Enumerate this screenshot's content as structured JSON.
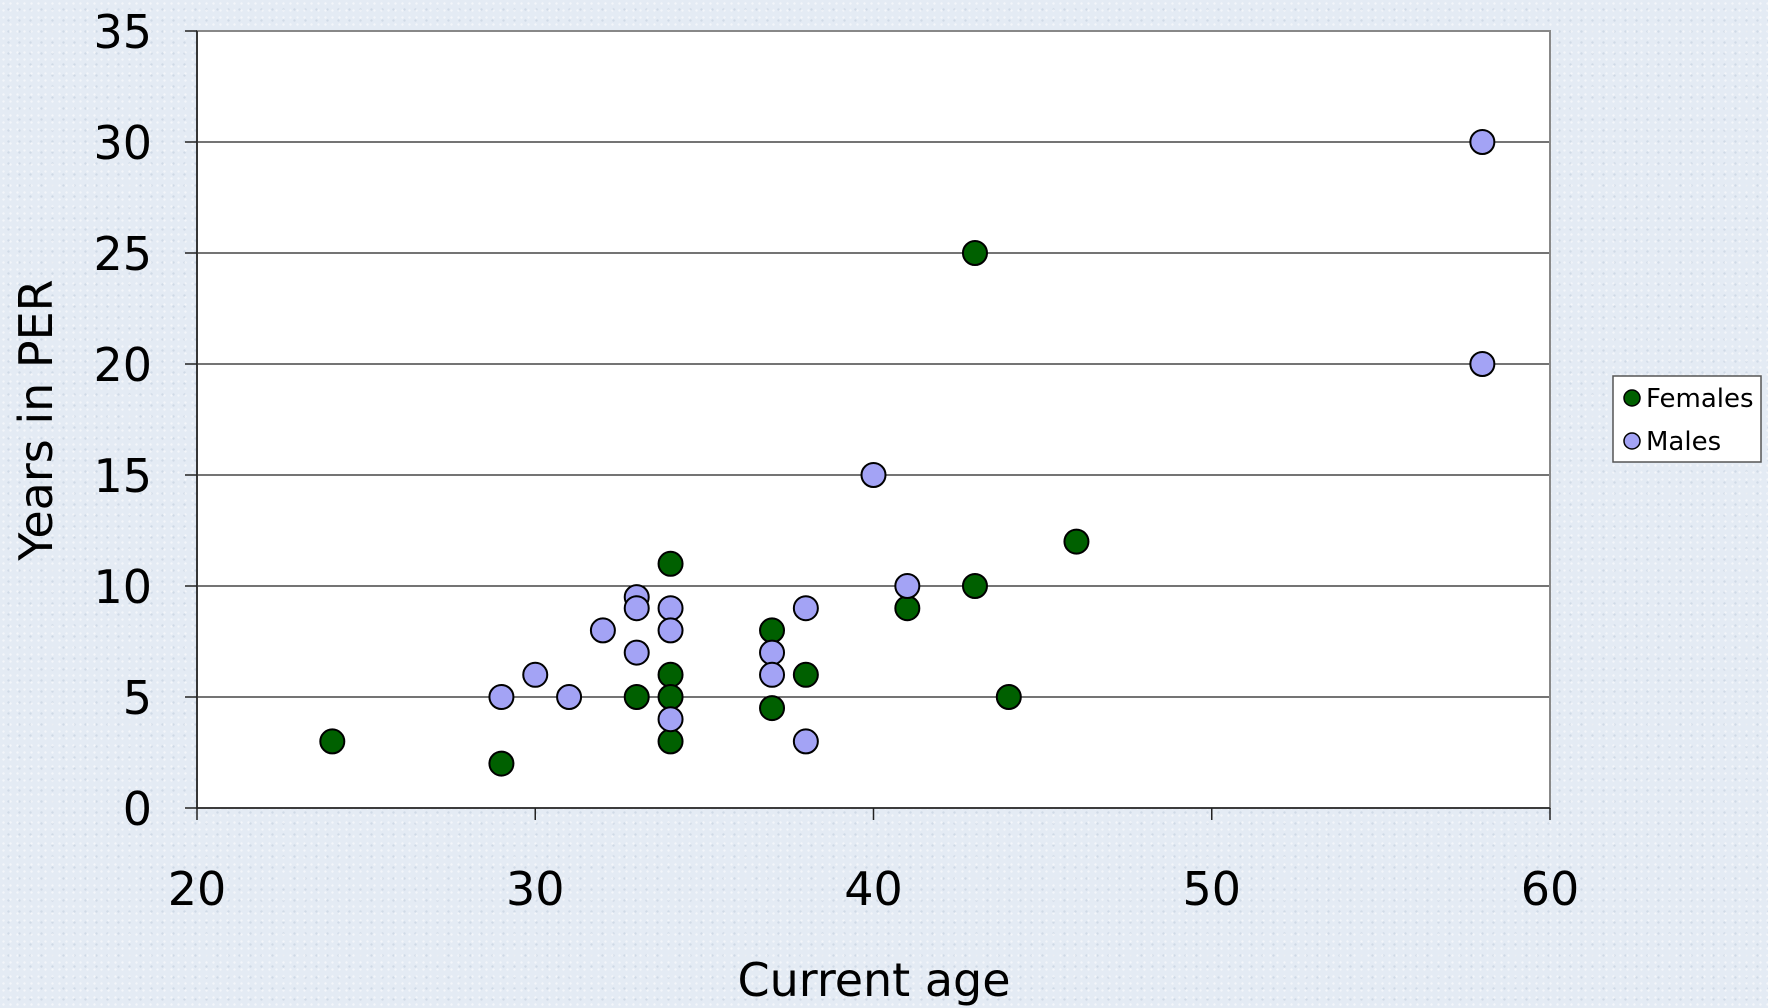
{
  "chart_data": {
    "type": "scatter",
    "xlabel": "Current age",
    "ylabel": "Years in PER",
    "xlim": [
      20,
      60
    ],
    "ylim": [
      0,
      35
    ],
    "xticks": [
      "20",
      "30",
      "40",
      "50",
      "60"
    ],
    "yticks": [
      "0",
      "5",
      "10",
      "15",
      "20",
      "25",
      "30",
      "35"
    ],
    "grid": "horizontal",
    "legend_position": "right",
    "series": [
      {
        "name": "Females",
        "color": "#006000",
        "points": [
          [
            24,
            3
          ],
          [
            29,
            2
          ],
          [
            33,
            5
          ],
          [
            34,
            11
          ],
          [
            34,
            6
          ],
          [
            34,
            5
          ],
          [
            34,
            3
          ],
          [
            37,
            8
          ],
          [
            37,
            4.5
          ],
          [
            38,
            6
          ],
          [
            41,
            9
          ],
          [
            43,
            25
          ],
          [
            43,
            10
          ],
          [
            44,
            5
          ],
          [
            46,
            12
          ]
        ]
      },
      {
        "name": "Males",
        "color": "#a3a3f5",
        "points": [
          [
            29,
            5
          ],
          [
            30,
            6
          ],
          [
            31,
            5
          ],
          [
            32,
            8
          ],
          [
            33,
            9.5
          ],
          [
            33,
            9
          ],
          [
            33,
            7
          ],
          [
            34,
            9
          ],
          [
            34,
            8
          ],
          [
            34,
            4
          ],
          [
            37,
            7
          ],
          [
            37,
            6
          ],
          [
            38,
            9
          ],
          [
            38,
            3
          ],
          [
            40,
            15
          ],
          [
            41,
            10
          ],
          [
            58,
            30
          ],
          [
            58,
            20
          ]
        ]
      }
    ]
  }
}
